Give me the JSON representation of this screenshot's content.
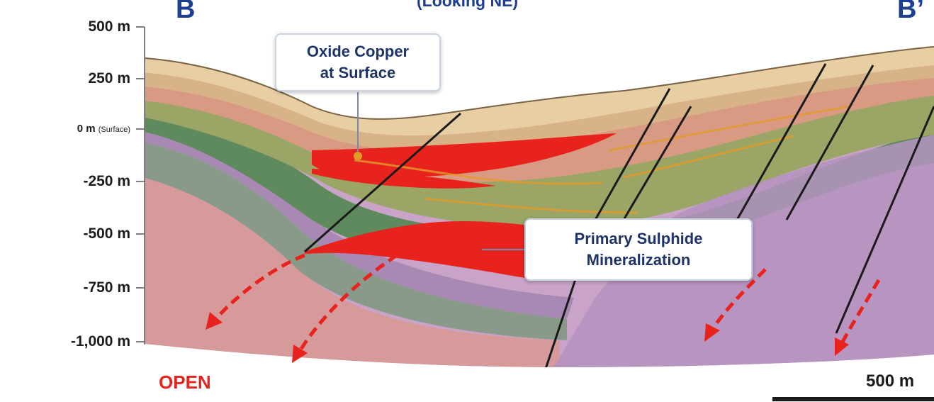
{
  "header": {
    "left_marker": "B",
    "right_marker": "B’",
    "view_direction": "(Looking NE)"
  },
  "depth_axis": {
    "labels": [
      "500 m",
      "250 m",
      "0 m",
      "(Surface)",
      "-250 m",
      "-500 m",
      "-750 m",
      "-1,000 m"
    ]
  },
  "callouts": {
    "oxide": {
      "line1": "Oxide Copper",
      "line2": "at Surface"
    },
    "sulphide": {
      "line1": "Primary Sulphide",
      "line2": "Mineralization"
    }
  },
  "open_label": "OPEN",
  "scale_bar": {
    "label": "500 m"
  },
  "colors": {
    "ore": "#e8231d",
    "title_blue": "#1d3f93",
    "callout_text": "#1e3466",
    "layer_cap": "#e8cfa3",
    "layer_tan": "#d9b388",
    "layer_salmon": "#d99a84",
    "layer_olive": "#9aa566",
    "layer_green": "#5f8a5e",
    "layer_purple": "#a889b4",
    "layer_pink": "#d69a9a",
    "layer_gray_green": "#8a9a8a",
    "layer_lilac": "#c9a4c8"
  }
}
